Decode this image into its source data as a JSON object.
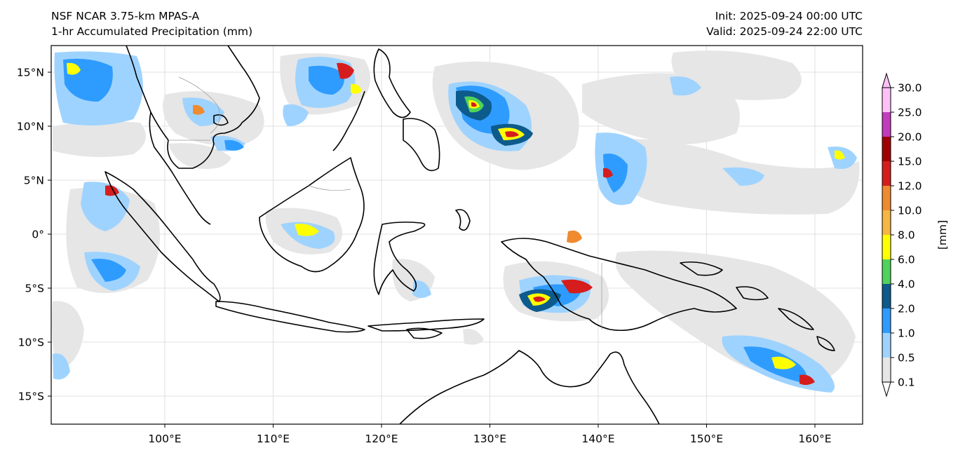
{
  "header": {
    "model": "NSF NCAR 3.75-km MPAS-A",
    "field": "1-hr Accumulated Precipitation (mm)",
    "init": "Init: 2025-09-24 00:00 UTC",
    "valid": "Valid: 2025-09-24 22:00 UTC"
  },
  "map": {
    "lon_ticks": [
      "100°E",
      "110°E",
      "120°E",
      "130°E",
      "140°E",
      "150°E",
      "160°E"
    ],
    "lat_ticks": [
      "15°N",
      "10°N",
      "5°N",
      "0°",
      "5°S",
      "10°S",
      "15°S"
    ]
  },
  "colorbar": {
    "unit_label": "[mm]",
    "levels": [
      "0.1",
      "0.5",
      "1.0",
      "2.0",
      "4.0",
      "6.0",
      "8.0",
      "10.0",
      "12.0",
      "15.0",
      "20.0",
      "25.0",
      "30.0"
    ],
    "colors": [
      "#e6e6e6",
      "#9fd3ff",
      "#2e9cff",
      "#0d5b8c",
      "#4fd35a",
      "#ffff00",
      "#f5b642",
      "#ef8a2f",
      "#d61d1d",
      "#a10000",
      "#c23bbd",
      "#ffc0f7"
    ]
  },
  "colors": {
    "land_outline": "#000000",
    "border": "#999999",
    "grid": "#d8d8d8"
  }
}
